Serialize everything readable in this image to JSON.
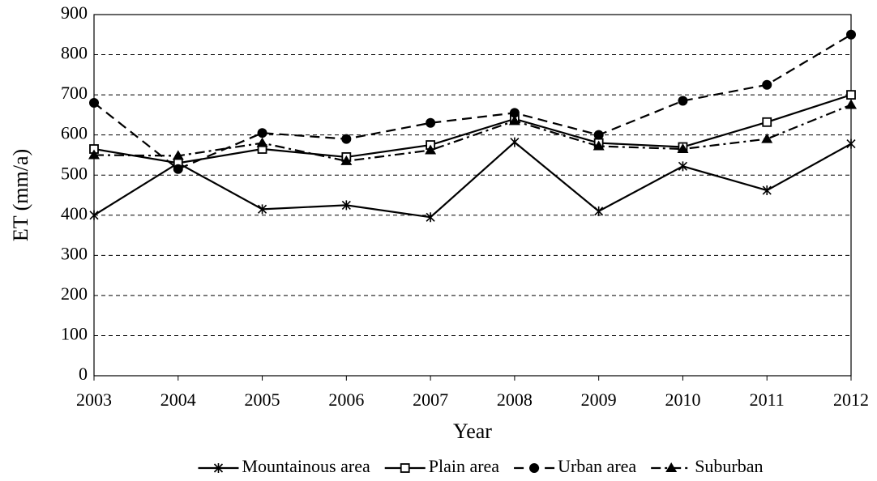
{
  "chart_data": {
    "type": "line",
    "x_label": "Year",
    "y_label": "ET (mm/a)",
    "x": [
      2003,
      2004,
      2005,
      2006,
      2007,
      2008,
      2009,
      2010,
      2011,
      2012
    ],
    "xlim": [
      2003,
      2012
    ],
    "xticks": [
      2003,
      2004,
      2005,
      2006,
      2007,
      2008,
      2009,
      2010,
      2011,
      2012
    ],
    "ylim": [
      0,
      900
    ],
    "yticks": [
      0,
      100,
      200,
      300,
      400,
      500,
      600,
      700,
      800,
      900
    ],
    "grid": true,
    "legend": "bottom",
    "series": [
      {
        "name": "Mountainous area",
        "color": "#000000",
        "marker": "asterisk",
        "dash": "solid",
        "values": [
          400,
          530,
          415,
          425,
          395,
          582,
          410,
          522,
          462,
          578
        ]
      },
      {
        "name": "Plain area",
        "color": "#000000",
        "marker": "square",
        "dash": "solid",
        "values": [
          565,
          530,
          565,
          545,
          575,
          640,
          580,
          570,
          632,
          700
        ]
      },
      {
        "name": "Urban area",
        "color": "#000000",
        "marker": "circle",
        "dash": "dashed",
        "values": [
          680,
          515,
          605,
          590,
          630,
          655,
          600,
          685,
          725,
          850
        ]
      },
      {
        "name": "Suburban",
        "color": "#000000",
        "marker": "triangle",
        "dash": "dashdot",
        "values": [
          550,
          548,
          580,
          535,
          562,
          635,
          572,
          565,
          590,
          675
        ]
      }
    ]
  }
}
